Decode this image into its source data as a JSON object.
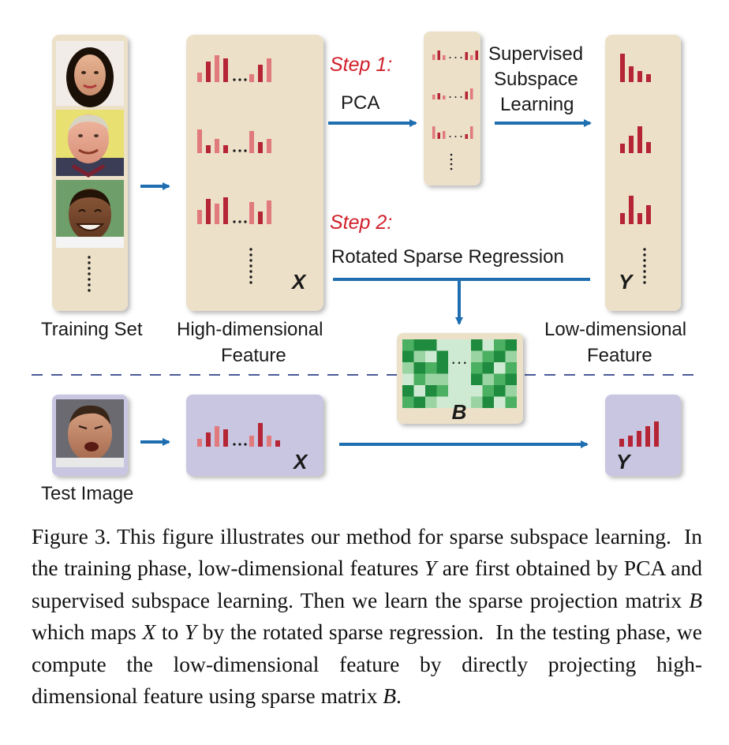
{
  "colors": {
    "panel_tan": "#ece0c8",
    "panel_lavender": "#c9c6e2",
    "arrow_blue": "#1f6fb0",
    "bar_light_red": "#e07a7c",
    "bar_dark_red": "#b52535",
    "step_red": "#d0202a",
    "matrix_greens": [
      "#1e8b3e",
      "#4cb062",
      "#9ad4a2",
      "#cfead2"
    ],
    "dashed_line": "#4a5a98"
  },
  "labels": {
    "training_set": "Training Set",
    "high_dim_line1": "High-dimensional",
    "high_dim_line2": "Feature",
    "low_dim_line1": "Low-dimensional",
    "low_dim_line2": "Feature",
    "test_image": "Test Image",
    "x_symbol": "X",
    "y_symbol": "Y",
    "b_symbol": "B"
  },
  "steps": {
    "step1": "Step 1:",
    "step2": "Step 2:",
    "pca": "PCA",
    "supervised_line1": "Supervised",
    "supervised_line2": "Subspace",
    "supervised_line3": "Learning",
    "rotated": "Rotated Sparse Regression"
  },
  "icons": {
    "faces": [
      "woman-face-photo",
      "man-face-photo",
      "smiling-man-face-photo"
    ],
    "test_face": "shouting-man-face-photo"
  },
  "caption": {
    "segments": [
      {
        "text": "Figure 3. This figure illustrates our method for sparse subspace learning.  In the training phase, low-dimensional features "
      },
      {
        "text": "Y",
        "math": true
      },
      {
        "text": " are first obtained by PCA and supervised subspace learning. Then we learn the sparse projection matrix "
      },
      {
        "text": "B",
        "math": true
      },
      {
        "text": " which maps "
      },
      {
        "text": "X",
        "math": true
      },
      {
        "text": " to "
      },
      {
        "text": "Y",
        "math": true
      },
      {
        "text": " by the rotated sparse regression.  In the testing phase, we compute the low-dimensional feature by directly projecting high-dimensional feature using sparse matrix "
      },
      {
        "text": "B",
        "math": true
      },
      {
        "text": "."
      }
    ]
  }
}
